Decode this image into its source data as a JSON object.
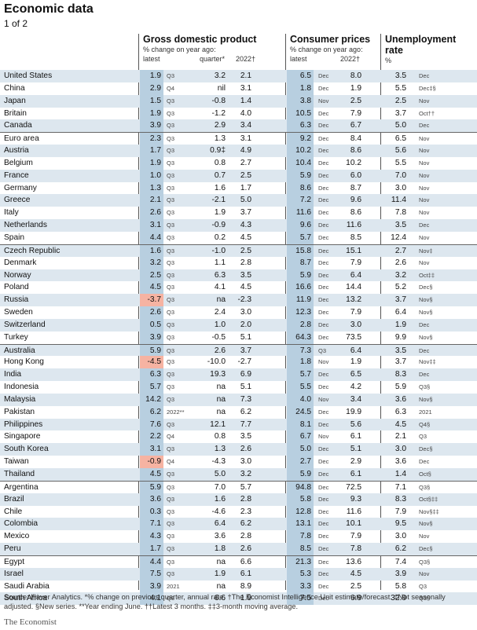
{
  "title": "Economic data",
  "subtitle": "1 of 2",
  "headers": {
    "gdp": {
      "title": "Gross domestic product",
      "sub": "% change on year ago:",
      "c1": "latest",
      "c2": "quarter*",
      "c3": "2022†"
    },
    "cpi": {
      "title": "Consumer prices",
      "sub": "% change on year ago:",
      "c1": "latest",
      "c3": "2022†"
    },
    "unemp": {
      "title1": "Unemployment",
      "title2": "rate",
      "unit": "%"
    }
  },
  "rows": [
    {
      "country": "United States",
      "gdp_latest": "1.9",
      "gdp_period": "Q3",
      "gdp_quarter": "3.2",
      "gdp_2022": "2.1",
      "cpi_latest": "6.5",
      "cpi_period": "Dec",
      "cpi_2022": "8.0",
      "unemp": "3.5",
      "unemp_period": "Dec",
      "group_start": true
    },
    {
      "country": "China",
      "gdp_latest": "2.9",
      "gdp_period": "Q4",
      "gdp_quarter": "nil",
      "gdp_2022": "3.1",
      "cpi_latest": "1.8",
      "cpi_period": "Dec",
      "cpi_2022": "1.9",
      "unemp": "5.5",
      "unemp_period": "Dec‡§"
    },
    {
      "country": "Japan",
      "gdp_latest": "1.5",
      "gdp_period": "Q3",
      "gdp_quarter": "-0.8",
      "gdp_2022": "1.4",
      "cpi_latest": "3.8",
      "cpi_period": "Nov",
      "cpi_2022": "2.5",
      "unemp": "2.5",
      "unemp_period": "Nov"
    },
    {
      "country": "Britain",
      "gdp_latest": "1.9",
      "gdp_period": "Q3",
      "gdp_quarter": "-1.2",
      "gdp_2022": "4.0",
      "cpi_latest": "10.5",
      "cpi_period": "Dec",
      "cpi_2022": "7.9",
      "unemp": "3.7",
      "unemp_period": "Oct††"
    },
    {
      "country": "Canada",
      "gdp_latest": "3.9",
      "gdp_period": "Q3",
      "gdp_quarter": "2.9",
      "gdp_2022": "3.4",
      "cpi_latest": "6.3",
      "cpi_period": "Dec",
      "cpi_2022": "6.7",
      "unemp": "5.0",
      "unemp_period": "Dec"
    },
    {
      "country": "Euro area",
      "gdp_latest": "2.3",
      "gdp_period": "Q3",
      "gdp_quarter": "1.3",
      "gdp_2022": "3.1",
      "cpi_latest": "9.2",
      "cpi_period": "Dec",
      "cpi_2022": "8.4",
      "unemp": "6.5",
      "unemp_period": "Nov",
      "group_start": true
    },
    {
      "country": "Austria",
      "gdp_latest": "1.7",
      "gdp_period": "Q3",
      "gdp_quarter": "0.9‡",
      "gdp_2022": "4.9",
      "cpi_latest": "10.2",
      "cpi_period": "Dec",
      "cpi_2022": "8.6",
      "unemp": "5.6",
      "unemp_period": "Nov"
    },
    {
      "country": "Belgium",
      "gdp_latest": "1.9",
      "gdp_period": "Q3",
      "gdp_quarter": "0.8",
      "gdp_2022": "2.7",
      "cpi_latest": "10.4",
      "cpi_period": "Dec",
      "cpi_2022": "10.2",
      "unemp": "5.5",
      "unemp_period": "Nov"
    },
    {
      "country": "France",
      "gdp_latest": "1.0",
      "gdp_period": "Q3",
      "gdp_quarter": "0.7",
      "gdp_2022": "2.5",
      "cpi_latest": "5.9",
      "cpi_period": "Dec",
      "cpi_2022": "6.0",
      "unemp": "7.0",
      "unemp_period": "Nov"
    },
    {
      "country": "Germany",
      "gdp_latest": "1.3",
      "gdp_period": "Q3",
      "gdp_quarter": "1.6",
      "gdp_2022": "1.7",
      "cpi_latest": "8.6",
      "cpi_period": "Dec",
      "cpi_2022": "8.7",
      "unemp": "3.0",
      "unemp_period": "Nov"
    },
    {
      "country": "Greece",
      "gdp_latest": "2.1",
      "gdp_period": "Q3",
      "gdp_quarter": "-2.1",
      "gdp_2022": "5.0",
      "cpi_latest": "7.2",
      "cpi_period": "Dec",
      "cpi_2022": "9.6",
      "unemp": "11.4",
      "unemp_period": "Nov"
    },
    {
      "country": "Italy",
      "gdp_latest": "2.6",
      "gdp_period": "Q3",
      "gdp_quarter": "1.9",
      "gdp_2022": "3.7",
      "cpi_latest": "11.6",
      "cpi_period": "Dec",
      "cpi_2022": "8.6",
      "unemp": "7.8",
      "unemp_period": "Nov"
    },
    {
      "country": "Netherlands",
      "gdp_latest": "3.1",
      "gdp_period": "Q3",
      "gdp_quarter": "-0.9",
      "gdp_2022": "4.3",
      "cpi_latest": "9.6",
      "cpi_period": "Dec",
      "cpi_2022": "11.6",
      "unemp": "3.5",
      "unemp_period": "Dec"
    },
    {
      "country": "Spain",
      "gdp_latest": "4.4",
      "gdp_period": "Q3",
      "gdp_quarter": "0.2",
      "gdp_2022": "4.5",
      "cpi_latest": "5.7",
      "cpi_period": "Dec",
      "cpi_2022": "8.5",
      "unemp": "12.4",
      "unemp_period": "Nov"
    },
    {
      "country": "Czech Republic",
      "gdp_latest": "1.6",
      "gdp_period": "Q3",
      "gdp_quarter": "-1.0",
      "gdp_2022": "2.5",
      "cpi_latest": "15.8",
      "cpi_period": "Dec",
      "cpi_2022": "15.1",
      "unemp": "2.7",
      "unemp_period": "Nov‡",
      "group_start": true
    },
    {
      "country": "Denmark",
      "gdp_latest": "3.2",
      "gdp_period": "Q3",
      "gdp_quarter": "1.1",
      "gdp_2022": "2.8",
      "cpi_latest": "8.7",
      "cpi_period": "Dec",
      "cpi_2022": "7.9",
      "unemp": "2.6",
      "unemp_period": "Nov"
    },
    {
      "country": "Norway",
      "gdp_latest": "2.5",
      "gdp_period": "Q3",
      "gdp_quarter": "6.3",
      "gdp_2022": "3.5",
      "cpi_latest": "5.9",
      "cpi_period": "Dec",
      "cpi_2022": "6.4",
      "unemp": "3.2",
      "unemp_period": "Oct‡‡"
    },
    {
      "country": "Poland",
      "gdp_latest": "4.5",
      "gdp_period": "Q3",
      "gdp_quarter": "4.1",
      "gdp_2022": "4.5",
      "cpi_latest": "16.6",
      "cpi_period": "Dec",
      "cpi_2022": "14.4",
      "unemp": "5.2",
      "unemp_period": "Dec§"
    },
    {
      "country": "Russia",
      "gdp_latest": "-3.7",
      "gdp_period": "Q3",
      "gdp_quarter": "na",
      "gdp_2022": "-2.3",
      "cpi_latest": "11.9",
      "cpi_period": "Dec",
      "cpi_2022": "13.2",
      "unemp": "3.7",
      "unemp_period": "Nov§",
      "gdp_neg": true
    },
    {
      "country": "Sweden",
      "gdp_latest": "2.6",
      "gdp_period": "Q3",
      "gdp_quarter": "2.4",
      "gdp_2022": "3.0",
      "cpi_latest": "12.3",
      "cpi_period": "Dec",
      "cpi_2022": "7.9",
      "unemp": "6.4",
      "unemp_period": "Nov§"
    },
    {
      "country": "Switzerland",
      "gdp_latest": "0.5",
      "gdp_period": "Q3",
      "gdp_quarter": "1.0",
      "gdp_2022": "2.0",
      "cpi_latest": "2.8",
      "cpi_period": "Dec",
      "cpi_2022": "3.0",
      "unemp": "1.9",
      "unemp_period": "Dec"
    },
    {
      "country": "Turkey",
      "gdp_latest": "3.9",
      "gdp_period": "Q3",
      "gdp_quarter": "-0.5",
      "gdp_2022": "5.1",
      "cpi_latest": "64.3",
      "cpi_period": "Dec",
      "cpi_2022": "73.5",
      "unemp": "9.9",
      "unemp_period": "Nov§"
    },
    {
      "country": "Australia",
      "gdp_latest": "5.9",
      "gdp_period": "Q3",
      "gdp_quarter": "2.6",
      "gdp_2022": "3.7",
      "cpi_latest": "7.3",
      "cpi_period": "Q3",
      "cpi_2022": "6.4",
      "unemp": "3.5",
      "unemp_period": "Dec",
      "group_start": true
    },
    {
      "country": "Hong Kong",
      "gdp_latest": "-4.5",
      "gdp_period": "Q3",
      "gdp_quarter": "-10.0",
      "gdp_2022": "-2.7",
      "cpi_latest": "1.8",
      "cpi_period": "Nov",
      "cpi_2022": "1.9",
      "unemp": "3.7",
      "unemp_period": "Nov‡‡",
      "gdp_neg": true
    },
    {
      "country": "India",
      "gdp_latest": "6.3",
      "gdp_period": "Q3",
      "gdp_quarter": "19.3",
      "gdp_2022": "6.9",
      "cpi_latest": "5.7",
      "cpi_period": "Dec",
      "cpi_2022": "6.5",
      "unemp": "8.3",
      "unemp_period": "Dec"
    },
    {
      "country": "Indonesia",
      "gdp_latest": "5.7",
      "gdp_period": "Q3",
      "gdp_quarter": "na",
      "gdp_2022": "5.1",
      "cpi_latest": "5.5",
      "cpi_period": "Dec",
      "cpi_2022": "4.2",
      "unemp": "5.9",
      "unemp_period": "Q3§"
    },
    {
      "country": "Malaysia",
      "gdp_latest": "14.2",
      "gdp_period": "Q3",
      "gdp_quarter": "na",
      "gdp_2022": "7.3",
      "cpi_latest": "4.0",
      "cpi_period": "Nov",
      "cpi_2022": "3.4",
      "unemp": "3.6",
      "unemp_period": "Nov§"
    },
    {
      "country": "Pakistan",
      "gdp_latest": "6.2",
      "gdp_period": "2022**",
      "gdp_quarter": "na",
      "gdp_2022": "6.2",
      "cpi_latest": "24.5",
      "cpi_period": "Dec",
      "cpi_2022": "19.9",
      "unemp": "6.3",
      "unemp_period": "2021"
    },
    {
      "country": "Philippines",
      "gdp_latest": "7.6",
      "gdp_period": "Q3",
      "gdp_quarter": "12.1",
      "gdp_2022": "7.7",
      "cpi_latest": "8.1",
      "cpi_period": "Dec",
      "cpi_2022": "5.6",
      "unemp": "4.5",
      "unemp_period": "Q4§"
    },
    {
      "country": "Singapore",
      "gdp_latest": "2.2",
      "gdp_period": "Q4",
      "gdp_quarter": "0.8",
      "gdp_2022": "3.5",
      "cpi_latest": "6.7",
      "cpi_period": "Nov",
      "cpi_2022": "6.1",
      "unemp": "2.1",
      "unemp_period": "Q3"
    },
    {
      "country": "South Korea",
      "gdp_latest": "3.1",
      "gdp_period": "Q3",
      "gdp_quarter": "1.3",
      "gdp_2022": "2.6",
      "cpi_latest": "5.0",
      "cpi_period": "Dec",
      "cpi_2022": "5.1",
      "unemp": "3.0",
      "unemp_period": "Dec§"
    },
    {
      "country": "Taiwan",
      "gdp_latest": "-0.9",
      "gdp_period": "Q4",
      "gdp_quarter": "-4.3",
      "gdp_2022": "3.0",
      "cpi_latest": "2.7",
      "cpi_period": "Dec",
      "cpi_2022": "2.9",
      "unemp": "3.6",
      "unemp_period": "Dec",
      "gdp_neg": true
    },
    {
      "country": "Thailand",
      "gdp_latest": "4.5",
      "gdp_period": "Q3",
      "gdp_quarter": "5.0",
      "gdp_2022": "3.2",
      "cpi_latest": "5.9",
      "cpi_period": "Dec",
      "cpi_2022": "6.1",
      "unemp": "1.4",
      "unemp_period": "Oct§"
    },
    {
      "country": "Argentina",
      "gdp_latest": "5.9",
      "gdp_period": "Q3",
      "gdp_quarter": "7.0",
      "gdp_2022": "5.7",
      "cpi_latest": "94.8",
      "cpi_period": "Dec",
      "cpi_2022": "72.5",
      "unemp": "7.1",
      "unemp_period": "Q3§",
      "group_start": true
    },
    {
      "country": "Brazil",
      "gdp_latest": "3.6",
      "gdp_period": "Q3",
      "gdp_quarter": "1.6",
      "gdp_2022": "2.8",
      "cpi_latest": "5.8",
      "cpi_period": "Dec",
      "cpi_2022": "9.3",
      "unemp": "8.3",
      "unemp_period": "Oct§‡‡"
    },
    {
      "country": "Chile",
      "gdp_latest": "0.3",
      "gdp_period": "Q3",
      "gdp_quarter": "-4.6",
      "gdp_2022": "2.3",
      "cpi_latest": "12.8",
      "cpi_period": "Dec",
      "cpi_2022": "11.6",
      "unemp": "7.9",
      "unemp_period": "Nov§‡‡"
    },
    {
      "country": "Colombia",
      "gdp_latest": "7.1",
      "gdp_period": "Q3",
      "gdp_quarter": "6.4",
      "gdp_2022": "6.2",
      "cpi_latest": "13.1",
      "cpi_period": "Dec",
      "cpi_2022": "10.1",
      "unemp": "9.5",
      "unemp_period": "Nov§"
    },
    {
      "country": "Mexico",
      "gdp_latest": "4.3",
      "gdp_period": "Q3",
      "gdp_quarter": "3.6",
      "gdp_2022": "2.8",
      "cpi_latest": "7.8",
      "cpi_period": "Dec",
      "cpi_2022": "7.9",
      "unemp": "3.0",
      "unemp_period": "Nov"
    },
    {
      "country": "Peru",
      "gdp_latest": "1.7",
      "gdp_period": "Q3",
      "gdp_quarter": "1.8",
      "gdp_2022": "2.6",
      "cpi_latest": "8.5",
      "cpi_period": "Dec",
      "cpi_2022": "7.8",
      "unemp": "6.2",
      "unemp_period": "Dec§"
    },
    {
      "country": "Egypt",
      "gdp_latest": "4.4",
      "gdp_period": "Q3",
      "gdp_quarter": "na",
      "gdp_2022": "6.6",
      "cpi_latest": "21.3",
      "cpi_period": "Dec",
      "cpi_2022": "13.6",
      "unemp": "7.4",
      "unemp_period": "Q3§",
      "group_start": true
    },
    {
      "country": "Israel",
      "gdp_latest": "7.5",
      "gdp_period": "Q3",
      "gdp_quarter": "1.9",
      "gdp_2022": "6.1",
      "cpi_latest": "5.3",
      "cpi_period": "Dec",
      "cpi_2022": "4.5",
      "unemp": "3.9",
      "unemp_period": "Nov"
    },
    {
      "country": "Saudi Arabia",
      "gdp_latest": "3.9",
      "gdp_period": "2021",
      "gdp_quarter": "na",
      "gdp_2022": "8.9",
      "cpi_latest": "3.3",
      "cpi_period": "Dec",
      "cpi_2022": "2.5",
      "unemp": "5.8",
      "unemp_period": "Q3"
    },
    {
      "country": "South Africa",
      "gdp_latest": "4.1",
      "gdp_period": "Q3",
      "gdp_quarter": "6.6",
      "gdp_2022": "1.9",
      "cpi_latest": "7.5",
      "cpi_period": "Dec",
      "cpi_2022": "6.9",
      "unemp": "32.9",
      "unemp_period": "Q3§"
    }
  ],
  "footer": "Source: Haver Analytics.  *% change on previous quarter, annual rate. †The Economist Intelligence Unit estimate/forecast. ‡Not seasonally adjusted. §New series. **Year ending June. ††Latest 3 months. ‡‡3-month moving average.",
  "brand": "The Economist",
  "colors": {
    "row_alt": "#dde7ef",
    "highlight": "#b8cfe0",
    "negative_highlight": "#f6b3a2"
  }
}
